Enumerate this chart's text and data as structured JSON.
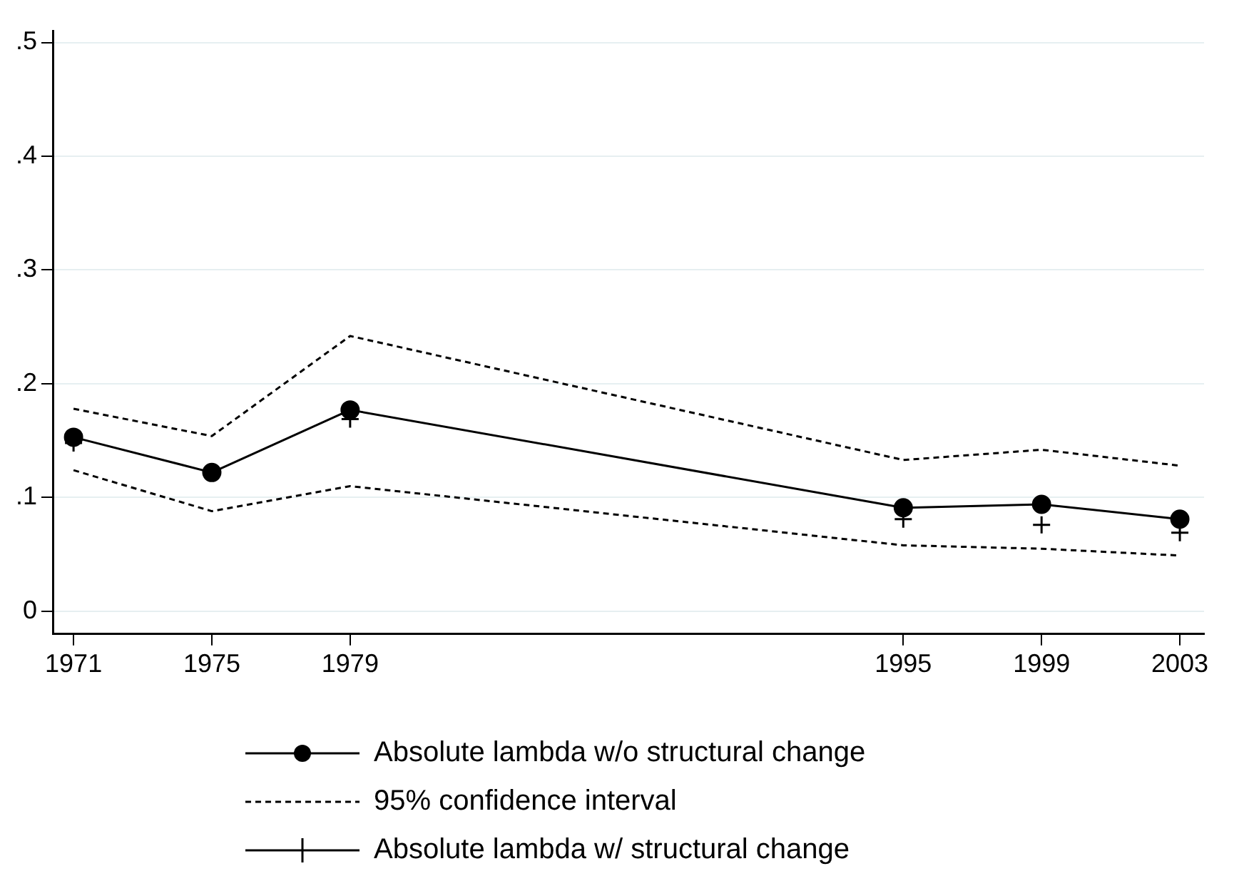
{
  "chart_data": {
    "type": "line",
    "x": [
      1971,
      1975,
      1979,
      1995,
      1999,
      2003
    ],
    "xlim": [
      1970.4,
      2003.7
    ],
    "xticks": [
      1971,
      1975,
      1979,
      1995,
      1999,
      2003
    ],
    "ylim": [
      -0.02,
      0.51
    ],
    "yticks": [
      {
        "value": 0,
        "label": "0"
      },
      {
        "value": 0.1,
        "label": ".1"
      },
      {
        "value": 0.2,
        "label": ".2"
      },
      {
        "value": 0.3,
        "label": ".3"
      },
      {
        "value": 0.4,
        "label": ".4"
      },
      {
        "value": 0.5,
        "label": ".5"
      }
    ],
    "grid": "y",
    "legend": "bottom",
    "series": [
      {
        "name": "Absolute lambda w/o structural change",
        "color": "#000000",
        "marker": "circle",
        "line_style": "solid",
        "values": [
          0.153,
          0.122,
          0.177,
          0.091,
          0.094,
          0.081
        ]
      },
      {
        "name": "95% confidence interval",
        "color": "#000000",
        "marker": "none",
        "line_style": "dashed",
        "values": [
          0.178,
          0.154,
          0.242,
          0.133,
          0.142,
          0.128
        ]
      },
      {
        "color": "#000000",
        "marker": "none",
        "line_style": "dashed",
        "values": [
          0.124,
          0.088,
          0.11,
          0.058,
          0.055,
          0.049
        ]
      },
      {
        "name": "Absolute lambda w/ structural change",
        "type": "scatter",
        "color": "#000000",
        "marker": "cross",
        "values": [
          0.148,
          0.122,
          0.169,
          0.081,
          0.076,
          0.069
        ]
      }
    ]
  }
}
